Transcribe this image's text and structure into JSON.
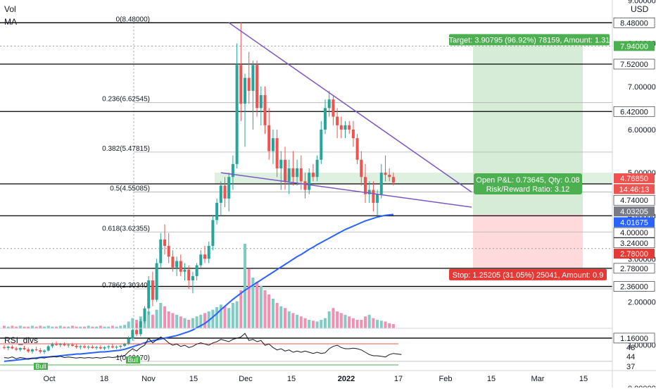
{
  "overlay": {
    "vol_label": "Vol",
    "ma_label": "MA",
    "rsi_label": "RSI_divs",
    "currency": "USD"
  },
  "colors": {
    "up": "#26a69a",
    "down": "#ef5350",
    "ma": "#2962ff",
    "trend": "#7e57c2",
    "target_zone": "#c8e6c9",
    "stop_zone": "#ffcdd2",
    "target_label": "#4caf50",
    "stop_label": "#e53935",
    "vol_up": "#80cbc4",
    "vol_down": "#f48fb1"
  },
  "chart_data": {
    "type": "candlestick",
    "symbol_currency": "USD",
    "price_axis": [
      "9.00000",
      "8.00000",
      "7.00000",
      "6.00000",
      "5.00000",
      "4.00000",
      "3.00000",
      "2.00000",
      "1.00000",
      "0.00000"
    ],
    "time_axis": [
      "Oct",
      "18",
      "Nov",
      "15",
      "Dec",
      "15",
      "2022",
      "17",
      "Feb",
      "15",
      "Mar",
      "15"
    ],
    "fib_levels": [
      {
        "label": "0(8.48000)",
        "price": 8.48
      },
      {
        "label": "0.236(6.62545)",
        "price": 6.62545
      },
      {
        "label": "0.382(5.47815)",
        "price": 5.47815
      },
      {
        "label": "0.5(4.55085)",
        "price": 4.55085
      },
      {
        "label": "0.618(3.62355)",
        "price": 3.62355
      },
      {
        "label": "0.786(2.30340)",
        "price": 2.3034
      },
      {
        "label": "1(0.62170)",
        "price": 0.6217
      }
    ],
    "horizontal_levels": [
      "8.48000",
      "7.94000",
      "7.52000",
      "6.42000",
      "4.74000",
      "4.00000",
      "3.24000",
      "2.78000",
      "2.36000",
      "1.16000"
    ],
    "price_tags": [
      {
        "text": "8.48000",
        "price": 8.48,
        "bg": "#ffffff",
        "fg": "#131722"
      },
      {
        "text": "7.94000",
        "price": 7.94,
        "bg": "#4caf50",
        "fg": "#ffffff"
      },
      {
        "text": "7.52000",
        "price": 7.52,
        "bg": "#ffffff",
        "fg": "#131722"
      },
      {
        "text": "6.42000",
        "price": 6.42,
        "bg": "#ffffff",
        "fg": "#131722"
      },
      {
        "text": "4.76850",
        "price": 4.87,
        "bg": "#ef5350",
        "fg": "#ffffff"
      },
      {
        "text": "14:46:13",
        "price": 4.62,
        "bg": "#ef5350",
        "fg": "#ffffff"
      },
      {
        "text": "4.74000",
        "price": 4.36,
        "bg": "#ffffff",
        "fg": "#131722"
      },
      {
        "text": "4.03205",
        "price": 4.1,
        "bg": "#787b86",
        "fg": "#ffffff"
      },
      {
        "text": "4.01675",
        "price": 3.85,
        "bg": "#2962ff",
        "fg": "#ffffff"
      },
      {
        "text": "4.00000",
        "price": 3.61,
        "bg": "#ffffff",
        "fg": "#131722"
      },
      {
        "text": "3.24000",
        "price": 3.37,
        "bg": "#ffffff",
        "fg": "#131722"
      },
      {
        "text": "2.78000",
        "price": 3.12,
        "bg": "#e53935",
        "fg": "#ffffff"
      },
      {
        "text": "2.78000",
        "price": 2.78,
        "bg": "#ffffff",
        "fg": "#131722"
      },
      {
        "text": "2.36000",
        "price": 2.36,
        "bg": "#ffffff",
        "fg": "#131722"
      },
      {
        "text": "1.16000",
        "price": 1.16,
        "bg": "#ffffff",
        "fg": "#131722"
      }
    ],
    "position": {
      "target_text": "Target: 3.90795 (96.92%) 78159, Amount: 1.31",
      "stop_text": "Stop: 1.25205 (31.05%) 25041, Amount: 0.9",
      "pnl_text": "Open P&L: 0.73645, Qty: 0.08",
      "rr_text": "Risk/Reward Ratio: 3.12",
      "entry": 4.03205,
      "target": 7.94,
      "stop": 2.78
    },
    "rsi_axis": [
      "48",
      "48",
      "44",
      "37"
    ],
    "rsi_bull_labels": [
      "Bull",
      "Bull"
    ],
    "candles": [
      {
        "o": 0.95,
        "h": 1.0,
        "l": 0.9,
        "c": 0.93
      },
      {
        "o": 0.93,
        "h": 0.98,
        "l": 0.88,
        "c": 0.96
      },
      {
        "o": 0.96,
        "h": 1.0,
        "l": 0.9,
        "c": 0.92
      },
      {
        "o": 0.92,
        "h": 0.96,
        "l": 0.86,
        "c": 0.89
      },
      {
        "o": 0.89,
        "h": 0.95,
        "l": 0.85,
        "c": 0.93
      },
      {
        "o": 0.93,
        "h": 0.98,
        "l": 0.88,
        "c": 0.9
      },
      {
        "o": 0.9,
        "h": 0.94,
        "l": 0.82,
        "c": 0.85
      },
      {
        "o": 0.85,
        "h": 0.92,
        "l": 0.8,
        "c": 0.9
      },
      {
        "o": 0.9,
        "h": 0.96,
        "l": 0.86,
        "c": 0.88
      },
      {
        "o": 0.88,
        "h": 0.93,
        "l": 0.8,
        "c": 0.84
      },
      {
        "o": 0.84,
        "h": 0.9,
        "l": 0.79,
        "c": 0.87
      },
      {
        "o": 0.87,
        "h": 1.0,
        "l": 0.85,
        "c": 0.97
      },
      {
        "o": 0.97,
        "h": 1.06,
        "l": 0.93,
        "c": 1.03
      },
      {
        "o": 1.03,
        "h": 1.08,
        "l": 0.98,
        "c": 1.0
      },
      {
        "o": 1.0,
        "h": 1.05,
        "l": 0.95,
        "c": 1.02
      },
      {
        "o": 1.02,
        "h": 1.06,
        "l": 0.97,
        "c": 0.99
      },
      {
        "o": 0.99,
        "h": 1.04,
        "l": 0.94,
        "c": 1.01
      },
      {
        "o": 1.01,
        "h": 1.05,
        "l": 0.96,
        "c": 0.98
      },
      {
        "o": 0.98,
        "h": 1.02,
        "l": 0.92,
        "c": 0.95
      },
      {
        "o": 0.95,
        "h": 1.0,
        "l": 0.9,
        "c": 0.97
      },
      {
        "o": 0.97,
        "h": 1.01,
        "l": 0.92,
        "c": 0.94
      },
      {
        "o": 0.94,
        "h": 0.99,
        "l": 0.9,
        "c": 0.96
      },
      {
        "o": 0.96,
        "h": 1.0,
        "l": 0.91,
        "c": 0.93
      },
      {
        "o": 0.93,
        "h": 0.98,
        "l": 0.89,
        "c": 0.95
      },
      {
        "o": 0.95,
        "h": 0.99,
        "l": 0.9,
        "c": 0.92
      },
      {
        "o": 0.92,
        "h": 0.97,
        "l": 0.88,
        "c": 0.95
      },
      {
        "o": 0.95,
        "h": 1.0,
        "l": 0.9,
        "c": 0.97
      },
      {
        "o": 0.97,
        "h": 1.02,
        "l": 0.92,
        "c": 0.94
      },
      {
        "o": 0.94,
        "h": 0.99,
        "l": 0.9,
        "c": 0.96
      },
      {
        "o": 0.96,
        "h": 1.0,
        "l": 0.92,
        "c": 0.98
      },
      {
        "o": 0.98,
        "h": 1.05,
        "l": 0.95,
        "c": 1.03
      },
      {
        "o": 1.03,
        "h": 1.2,
        "l": 1.0,
        "c": 1.15
      },
      {
        "o": 1.15,
        "h": 1.4,
        "l": 1.1,
        "c": 1.35
      },
      {
        "o": 1.35,
        "h": 1.5,
        "l": 1.2,
        "c": 1.25
      },
      {
        "o": 1.25,
        "h": 1.6,
        "l": 1.2,
        "c": 1.55
      },
      {
        "o": 1.55,
        "h": 1.9,
        "l": 1.5,
        "c": 1.85
      },
      {
        "o": 1.85,
        "h": 2.6,
        "l": 1.7,
        "c": 2.5
      },
      {
        "o": 2.5,
        "h": 2.7,
        "l": 1.9,
        "c": 2.05
      },
      {
        "o": 2.05,
        "h": 3.0,
        "l": 2.0,
        "c": 2.9
      },
      {
        "o": 2.9,
        "h": 3.6,
        "l": 2.8,
        "c": 3.45
      },
      {
        "o": 3.45,
        "h": 3.8,
        "l": 3.1,
        "c": 3.3
      },
      {
        "o": 3.3,
        "h": 3.6,
        "l": 2.9,
        "c": 3.05
      },
      {
        "o": 3.05,
        "h": 3.2,
        "l": 2.7,
        "c": 2.8
      },
      {
        "o": 2.8,
        "h": 3.05,
        "l": 2.6,
        "c": 2.95
      },
      {
        "o": 2.95,
        "h": 3.1,
        "l": 2.6,
        "c": 2.7
      },
      {
        "o": 2.7,
        "h": 2.9,
        "l": 2.5,
        "c": 2.75
      },
      {
        "o": 2.75,
        "h": 2.85,
        "l": 2.3,
        "c": 2.5
      },
      {
        "o": 2.5,
        "h": 2.7,
        "l": 2.2,
        "c": 2.6
      },
      {
        "o": 2.6,
        "h": 2.9,
        "l": 2.5,
        "c": 2.85
      },
      {
        "o": 2.85,
        "h": 3.2,
        "l": 2.8,
        "c": 3.1
      },
      {
        "o": 3.1,
        "h": 3.3,
        "l": 2.9,
        "c": 3.0
      },
      {
        "o": 3.0,
        "h": 3.4,
        "l": 2.9,
        "c": 3.3
      },
      {
        "o": 3.3,
        "h": 4.0,
        "l": 3.2,
        "c": 3.9
      },
      {
        "o": 3.9,
        "h": 4.4,
        "l": 3.8,
        "c": 4.3
      },
      {
        "o": 4.3,
        "h": 4.8,
        "l": 4.0,
        "c": 4.7
      },
      {
        "o": 4.7,
        "h": 4.9,
        "l": 4.2,
        "c": 4.4
      },
      {
        "o": 4.4,
        "h": 5.0,
        "l": 4.1,
        "c": 4.9
      },
      {
        "o": 4.9,
        "h": 5.4,
        "l": 4.6,
        "c": 5.2
      },
      {
        "o": 5.2,
        "h": 8.0,
        "l": 5.1,
        "c": 7.5
      },
      {
        "o": 7.5,
        "h": 8.48,
        "l": 6.2,
        "c": 6.6
      },
      {
        "o": 6.6,
        "h": 7.3,
        "l": 5.6,
        "c": 7.2
      },
      {
        "o": 7.2,
        "h": 7.8,
        "l": 6.6,
        "c": 6.9
      },
      {
        "o": 6.9,
        "h": 7.6,
        "l": 6.0,
        "c": 7.5
      },
      {
        "o": 7.5,
        "h": 7.6,
        "l": 6.3,
        "c": 6.5
      },
      {
        "o": 6.5,
        "h": 7.0,
        "l": 6.1,
        "c": 6.8
      },
      {
        "o": 6.8,
        "h": 7.0,
        "l": 5.9,
        "c": 6.1
      },
      {
        "o": 6.1,
        "h": 6.5,
        "l": 5.3,
        "c": 5.5
      },
      {
        "o": 5.5,
        "h": 6.0,
        "l": 5.2,
        "c": 5.8
      },
      {
        "o": 5.8,
        "h": 6.0,
        "l": 4.9,
        "c": 5.1
      },
      {
        "o": 5.1,
        "h": 5.5,
        "l": 4.6,
        "c": 5.3
      },
      {
        "o": 5.3,
        "h": 5.6,
        "l": 4.6,
        "c": 4.8
      },
      {
        "o": 4.8,
        "h": 5.3,
        "l": 4.5,
        "c": 5.1
      },
      {
        "o": 5.1,
        "h": 5.5,
        "l": 4.7,
        "c": 4.9
      },
      {
        "o": 4.9,
        "h": 5.3,
        "l": 4.7,
        "c": 5.1
      },
      {
        "o": 5.1,
        "h": 5.4,
        "l": 4.6,
        "c": 4.8
      },
      {
        "o": 4.8,
        "h": 5.0,
        "l": 4.4,
        "c": 4.6
      },
      {
        "o": 4.6,
        "h": 5.1,
        "l": 4.5,
        "c": 5.0
      },
      {
        "o": 5.0,
        "h": 5.2,
        "l": 4.8,
        "c": 4.9
      },
      {
        "o": 4.9,
        "h": 5.4,
        "l": 4.8,
        "c": 5.3
      },
      {
        "o": 5.3,
        "h": 6.2,
        "l": 5.2,
        "c": 6.0
      },
      {
        "o": 6.0,
        "h": 6.7,
        "l": 5.9,
        "c": 6.5
      },
      {
        "o": 6.5,
        "h": 6.9,
        "l": 6.3,
        "c": 6.7
      },
      {
        "o": 6.7,
        "h": 6.8,
        "l": 6.1,
        "c": 6.3
      },
      {
        "o": 6.3,
        "h": 6.5,
        "l": 5.8,
        "c": 6.1
      },
      {
        "o": 6.1,
        "h": 6.3,
        "l": 5.8,
        "c": 6.0
      },
      {
        "o": 6.0,
        "h": 6.2,
        "l": 5.8,
        "c": 6.1
      },
      {
        "o": 6.1,
        "h": 6.2,
        "l": 5.9,
        "c": 6.0
      },
      {
        "o": 6.0,
        "h": 6.2,
        "l": 5.6,
        "c": 5.8
      },
      {
        "o": 5.8,
        "h": 5.9,
        "l": 5.2,
        "c": 5.3
      },
      {
        "o": 5.3,
        "h": 5.5,
        "l": 4.7,
        "c": 4.9
      },
      {
        "o": 4.9,
        "h": 5.2,
        "l": 4.3,
        "c": 4.5
      },
      {
        "o": 4.5,
        "h": 4.8,
        "l": 4.3,
        "c": 4.6
      },
      {
        "o": 4.6,
        "h": 4.8,
        "l": 4.1,
        "c": 4.3
      },
      {
        "o": 4.3,
        "h": 4.6,
        "l": 4.0,
        "c": 4.5
      },
      {
        "o": 4.5,
        "h": 5.2,
        "l": 4.4,
        "c": 5.0
      },
      {
        "o": 5.0,
        "h": 5.4,
        "l": 4.8,
        "c": 4.95
      },
      {
        "o": 4.95,
        "h": 5.1,
        "l": 4.8,
        "c": 4.9
      },
      {
        "o": 4.9,
        "h": 5.0,
        "l": 4.7,
        "c": 4.77
      }
    ],
    "ma": [
      0.62,
      0.63,
      0.64,
      0.65,
      0.66,
      0.67,
      0.68,
      0.69,
      0.7,
      0.71,
      0.72,
      0.72,
      0.73,
      0.74,
      0.75,
      0.76,
      0.77,
      0.78,
      0.79,
      0.79,
      0.8,
      0.81,
      0.82,
      0.83,
      0.84,
      0.84,
      0.85,
      0.86,
      0.87,
      0.88,
      0.9,
      0.93,
      0.96,
      0.99,
      1.02,
      1.05,
      1.08,
      1.1,
      1.12,
      1.14,
      1.16,
      1.18,
      1.2,
      1.22,
      1.25,
      1.28,
      1.31,
      1.35,
      1.4,
      1.45,
      1.5,
      1.57,
      1.65,
      1.73,
      1.82,
      1.9,
      1.98,
      2.06,
      2.13,
      2.2,
      2.27,
      2.33,
      2.39,
      2.45,
      2.51,
      2.57,
      2.63,
      2.69,
      2.75,
      2.81,
      2.87,
      2.93,
      2.99,
      3.05,
      3.1,
      3.16,
      3.22,
      3.27,
      3.33,
      3.38,
      3.43,
      3.48,
      3.53,
      3.58,
      3.63,
      3.68,
      3.72,
      3.76,
      3.8,
      3.84,
      3.88,
      3.91,
      3.94,
      3.97,
      3.99,
      4.01,
      4.02,
      4.03
    ],
    "volume": [
      3,
      2,
      3,
      2,
      3,
      2,
      2,
      3,
      2,
      3,
      2,
      3,
      2,
      2,
      3,
      2,
      2,
      3,
      2,
      2,
      2,
      3,
      2,
      2,
      3,
      2,
      2,
      3,
      2,
      3,
      4,
      8,
      12,
      10,
      14,
      18,
      20,
      16,
      22,
      30,
      26,
      20,
      18,
      16,
      14,
      12,
      10,
      12,
      14,
      16,
      18,
      20,
      22,
      25,
      28,
      26,
      24,
      30,
      32,
      45,
      100,
      70,
      60,
      55,
      50,
      45,
      40,
      35,
      30,
      26,
      24,
      20,
      18,
      16,
      14,
      12,
      10,
      9,
      8,
      10,
      12,
      20,
      24,
      20,
      18,
      16,
      14,
      12,
      10,
      10,
      14,
      16,
      12,
      10,
      9,
      8,
      6,
      5
    ],
    "rsi": [
      45,
      44,
      46,
      43,
      45,
      44,
      42,
      44,
      43,
      45,
      44,
      46,
      47,
      46,
      47,
      45,
      46,
      45,
      44,
      45,
      44,
      45,
      44,
      45,
      44,
      45,
      46,
      45,
      46,
      47,
      48,
      55,
      60,
      56,
      62,
      66,
      78,
      70,
      75,
      80,
      76,
      70,
      66,
      68,
      64,
      66,
      62,
      64,
      68,
      70,
      68,
      66,
      70,
      72,
      76,
      74,
      72,
      76,
      78,
      80,
      86,
      74,
      76,
      72,
      74,
      66,
      68,
      62,
      58,
      60,
      56,
      58,
      54,
      56,
      54,
      56,
      54,
      52,
      54,
      52,
      53,
      60,
      64,
      66,
      62,
      60,
      60,
      61,
      60,
      58,
      54,
      50,
      48,
      48,
      47,
      46,
      50,
      52,
      51,
      50
    ]
  }
}
